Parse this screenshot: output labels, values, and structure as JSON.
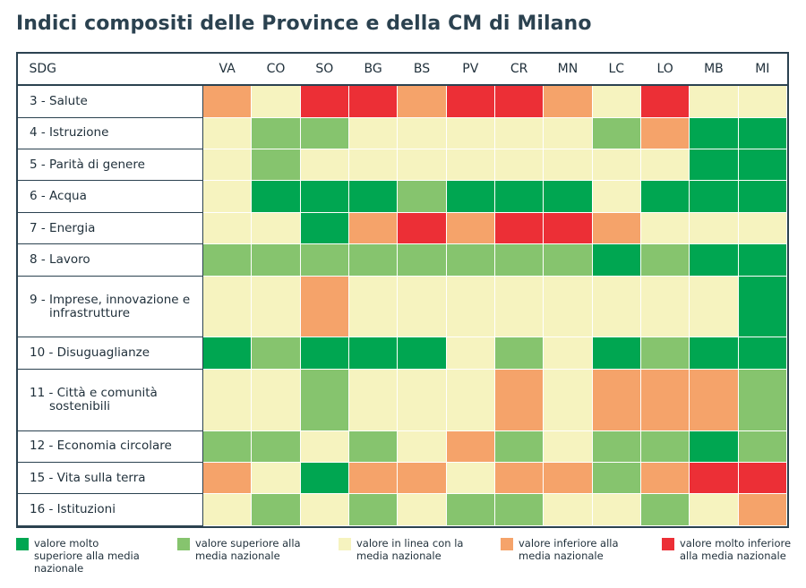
{
  "title": "Indici compositi delle Province e della CM di Milano",
  "chart_data": {
    "type": "heatmap",
    "row_header": "SDG",
    "columns": [
      "VA",
      "CO",
      "SO",
      "BG",
      "BS",
      "PV",
      "CR",
      "MN",
      "LC",
      "LO",
      "MB",
      "MI"
    ],
    "rows": [
      {
        "label_lines": [
          "3 - Salute"
        ],
        "values": [
          -1,
          0,
          -2,
          -2,
          -1,
          -2,
          -2,
          -1,
          0,
          -2,
          0,
          0
        ]
      },
      {
        "label_lines": [
          "4 - Istruzione"
        ],
        "values": [
          0,
          1,
          1,
          0,
          0,
          0,
          0,
          0,
          1,
          -1,
          2,
          2
        ]
      },
      {
        "label_lines": [
          "5 - Parità di genere"
        ],
        "values": [
          0,
          1,
          0,
          0,
          0,
          0,
          0,
          0,
          0,
          0,
          2,
          2
        ]
      },
      {
        "label_lines": [
          "6 - Acqua"
        ],
        "values": [
          0,
          2,
          2,
          2,
          1,
          2,
          2,
          2,
          0,
          2,
          2,
          2
        ]
      },
      {
        "label_lines": [
          "7 - Energia"
        ],
        "values": [
          0,
          0,
          2,
          -1,
          -2,
          -1,
          -2,
          -2,
          -1,
          0,
          0,
          0
        ]
      },
      {
        "label_lines": [
          "8 - Lavoro"
        ],
        "values": [
          1,
          1,
          1,
          1,
          1,
          1,
          1,
          1,
          2,
          1,
          2,
          2
        ]
      },
      {
        "label_lines": [
          "9 - Imprese, innovazione e",
          "infrastrutture"
        ],
        "values": [
          0,
          0,
          -1,
          0,
          0,
          0,
          0,
          0,
          0,
          0,
          0,
          2
        ]
      },
      {
        "label_lines": [
          "10 - Disuguaglianze"
        ],
        "values": [
          2,
          1,
          2,
          2,
          2,
          0,
          1,
          0,
          2,
          1,
          2,
          2
        ]
      },
      {
        "label_lines": [
          "11 - Città e comunità",
          "sostenibili"
        ],
        "values": [
          0,
          0,
          1,
          0,
          0,
          0,
          -1,
          0,
          -1,
          -1,
          -1,
          1
        ]
      },
      {
        "label_lines": [
          "12 - Economia circolare"
        ],
        "values": [
          1,
          1,
          0,
          1,
          0,
          -1,
          1,
          0,
          1,
          1,
          2,
          1
        ]
      },
      {
        "label_lines": [
          "15 - Vita sulla terra"
        ],
        "values": [
          -1,
          0,
          2,
          -1,
          -1,
          0,
          -1,
          -1,
          1,
          -1,
          -2,
          -2
        ]
      },
      {
        "label_lines": [
          "16 - Istituzioni"
        ],
        "values": [
          0,
          1,
          0,
          1,
          0,
          1,
          1,
          0,
          0,
          1,
          0,
          -1
        ]
      }
    ],
    "categories_legend": [
      {
        "value": 2,
        "color": "#00a651",
        "label": "valore molto superiore alla media nazionale"
      },
      {
        "value": 1,
        "color": "#86c46e",
        "label": "valore superiore alla media nazionale"
      },
      {
        "value": 0,
        "color": "#f6f3bf",
        "label": "valore in linea con la media nazionale"
      },
      {
        "value": -1,
        "color": "#f5a36a",
        "label": "valore inferiore alla media nazionale"
      },
      {
        "value": -2,
        "color": "#ec2f36",
        "label": "valore molto inferiore alla media nazionale"
      }
    ]
  }
}
